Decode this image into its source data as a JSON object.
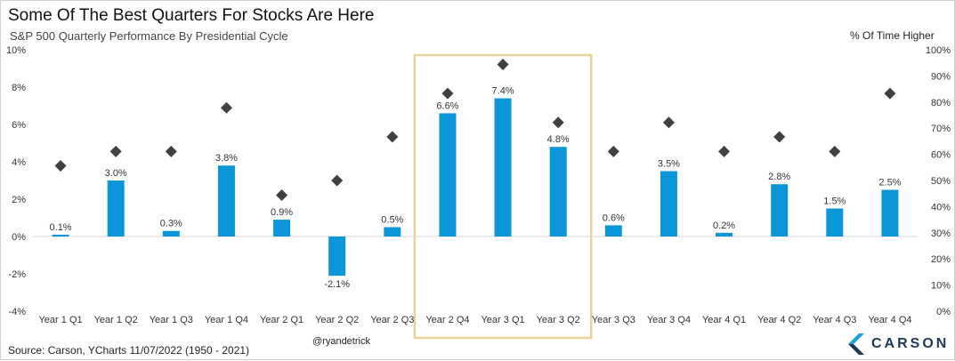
{
  "header": {
    "title": "Some Of The Best Quarters For Stocks Are Here",
    "subtitle": "S&P 500 Quarterly Performance By Presidential Cycle",
    "right_axis_title": "% Of Time Higher"
  },
  "footer": {
    "source": "Source: Carson, YCharts 11/07/2022 (1950 - 2021)",
    "handle": "@ryandetrick",
    "logo_text": "CARSON"
  },
  "colors": {
    "bar": "#0a96d8",
    "marker": "#404040",
    "highlight_box": "#e8d49a",
    "logo_accent": "#1ea0d8",
    "logo_dark": "#1f3a57"
  },
  "chart_data": {
    "type": "bar",
    "categories": [
      "Year 1 Q1",
      "Year 1 Q2",
      "Year 1 Q3",
      "Year 1 Q4",
      "Year 2 Q1",
      "Year 2 Q2",
      "Year 2 Q3",
      "Year 2 Q4",
      "Year 3 Q1",
      "Year 3 Q2",
      "Year 3 Q3",
      "Year 3 Q4",
      "Year 4 Q1",
      "Year 4 Q2",
      "Year 4 Q3",
      "Year 4 Q4"
    ],
    "series": [
      {
        "type": "bar",
        "axis": "left",
        "values": [
          0.1,
          3.0,
          0.3,
          3.8,
          0.9,
          -2.1,
          0.5,
          6.6,
          7.4,
          4.8,
          0.6,
          3.5,
          0.2,
          2.8,
          1.5,
          2.5
        ],
        "labels": [
          "0.1%",
          "3.0%",
          "0.3%",
          "3.8%",
          "0.9%",
          "-2.1%",
          "0.5%",
          "6.6%",
          "7.4%",
          "4.8%",
          "0.6%",
          "3.5%",
          "0.2%",
          "2.8%",
          "1.5%",
          "2.5%"
        ]
      },
      {
        "type": "scatter",
        "axis": "right",
        "marker": "diamond",
        "values": [
          55.6,
          61.1,
          61.1,
          77.8,
          44.4,
          50.0,
          66.7,
          83.3,
          94.4,
          72.2,
          61.1,
          72.2,
          61.1,
          66.7,
          61.1,
          83.3
        ]
      }
    ],
    "left_axis": {
      "min": -4,
      "max": 10,
      "ticks": [
        -4,
        -2,
        0,
        2,
        4,
        6,
        8,
        10
      ],
      "tick_labels": [
        "-4%",
        "-2%",
        "0%",
        "2%",
        "4%",
        "6%",
        "8%",
        "10%"
      ]
    },
    "right_axis": {
      "min": 0,
      "max": 100,
      "ticks": [
        0,
        10,
        20,
        30,
        40,
        50,
        60,
        70,
        80,
        90,
        100
      ],
      "tick_labels": [
        "0%",
        "10%",
        "20%",
        "30%",
        "40%",
        "50%",
        "60%",
        "70%",
        "80%",
        "90%",
        "100%"
      ]
    },
    "highlight_categories": [
      "Year 2 Q4",
      "Year 3 Q1",
      "Year 3 Q2"
    ],
    "grid": false,
    "legend": "none"
  }
}
